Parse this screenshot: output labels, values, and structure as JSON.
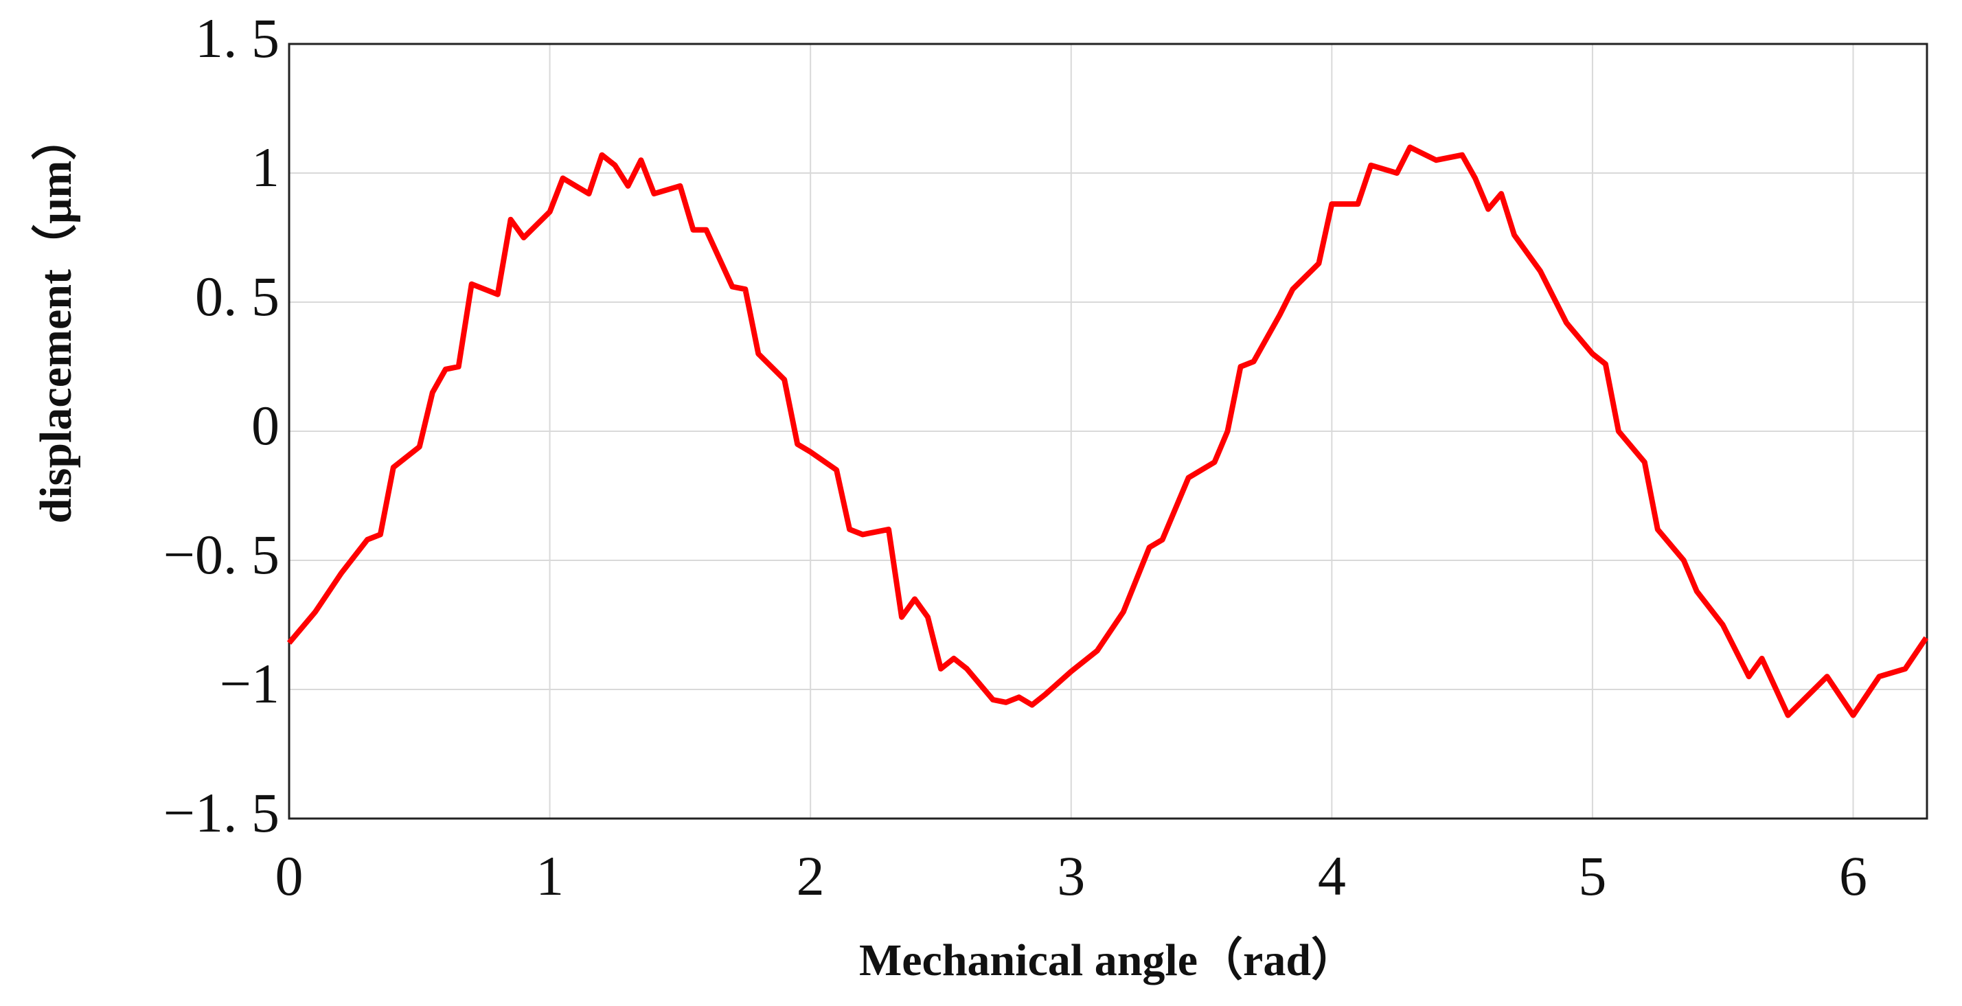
{
  "chart_data": {
    "type": "line",
    "xlabel": "Mechanical angle（rad）",
    "ylabel": "displacement（μm）",
    "xlim": [
      0,
      6.2832
    ],
    "ylim": [
      -1.5,
      1.5
    ],
    "xticks": [
      0,
      1,
      2,
      3,
      4,
      5,
      6
    ],
    "yticks": [
      {
        "value": -1.5,
        "label": "−1. 5"
      },
      {
        "value": -1,
        "label": "−1"
      },
      {
        "value": -0.5,
        "label": "−0. 5"
      },
      0,
      {
        "value": 0.5,
        "label": "0. 5"
      },
      1,
      {
        "value": 1.5,
        "label": "1. 5"
      }
    ],
    "grid": true,
    "series": [
      {
        "color": "#ff0000",
        "x": [
          0,
          0.1,
          0.2,
          0.3,
          0.35,
          0.4,
          0.5,
          0.55,
          0.6,
          0.65,
          0.7,
          0.8,
          0.85,
          0.9,
          1.0,
          1.05,
          1.1,
          1.15,
          1.2,
          1.25,
          1.3,
          1.35,
          1.4,
          1.5,
          1.55,
          1.6,
          1.7,
          1.75,
          1.8,
          1.9,
          1.95,
          2.0,
          2.1,
          2.15,
          2.2,
          2.3,
          2.35,
          2.4,
          2.45,
          2.5,
          2.55,
          2.6,
          2.7,
          2.75,
          2.8,
          2.85,
          2.9,
          3.0,
          3.1,
          3.2,
          3.3,
          3.35,
          3.45,
          3.55,
          3.6,
          3.65,
          3.7,
          3.8,
          3.85,
          3.9,
          3.95,
          4.0,
          4.1,
          4.15,
          4.25,
          4.3,
          4.4,
          4.5,
          4.55,
          4.6,
          4.65,
          4.7,
          4.8,
          4.9,
          5.0,
          5.05,
          5.1,
          5.2,
          5.25,
          5.35,
          5.4,
          5.5,
          5.55,
          5.6,
          5.65,
          5.75,
          5.8,
          5.9,
          6.0,
          6.1,
          6.2,
          6.28
        ],
        "values": [
          -0.82,
          -0.7,
          -0.55,
          -0.42,
          -0.4,
          -0.14,
          -0.06,
          0.15,
          0.24,
          0.25,
          0.57,
          0.53,
          0.82,
          0.75,
          0.85,
          0.98,
          0.95,
          0.92,
          1.07,
          1.03,
          0.95,
          1.05,
          0.92,
          0.95,
          0.78,
          0.78,
          0.56,
          0.55,
          0.3,
          0.2,
          -0.05,
          -0.08,
          -0.15,
          -0.38,
          -0.4,
          -0.38,
          -0.72,
          -0.65,
          -0.72,
          -0.92,
          -0.88,
          -0.92,
          -1.04,
          -1.05,
          -1.03,
          -1.06,
          -1.02,
          -0.93,
          -0.85,
          -0.7,
          -0.45,
          -0.42,
          -0.18,
          -0.12,
          0.0,
          0.25,
          0.27,
          0.45,
          0.55,
          0.6,
          0.65,
          0.88,
          0.88,
          1.03,
          1.0,
          1.1,
          1.05,
          1.07,
          0.98,
          0.86,
          0.92,
          0.76,
          0.62,
          0.42,
          0.3,
          0.26,
          0.0,
          -0.12,
          -0.38,
          -0.5,
          -0.62,
          -0.75,
          -0.85,
          -0.95,
          -0.88,
          -1.1,
          -1.05,
          -0.95,
          -1.1,
          -0.95,
          -0.92,
          -0.8
        ]
      }
    ]
  }
}
